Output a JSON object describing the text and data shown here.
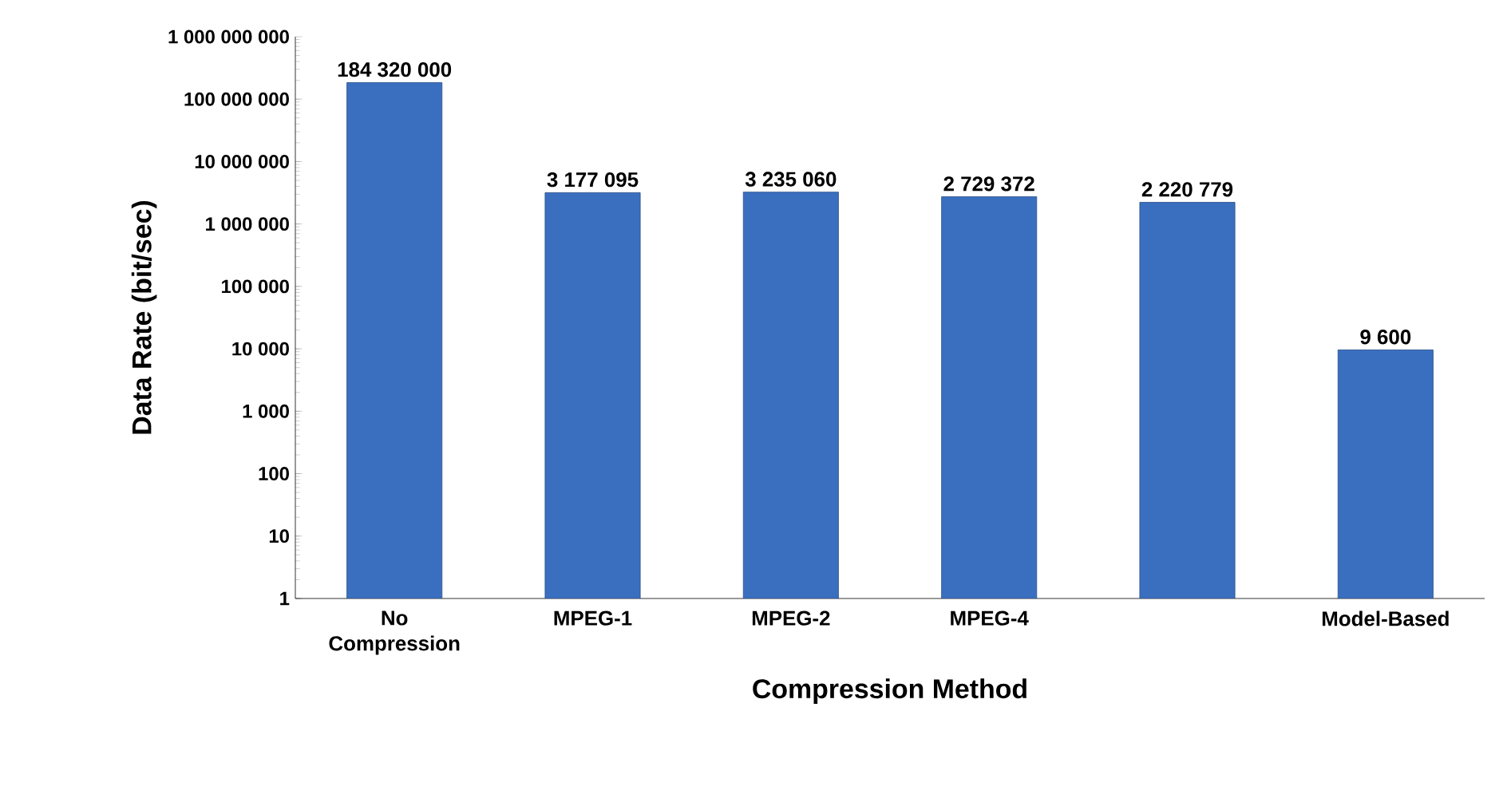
{
  "chart_data": {
    "type": "bar",
    "xlabel": "Compression Method",
    "ylabel": "Data Rate (bit/sec)",
    "categories": [
      "No Compression",
      "MPEG-1",
      "MPEG-2",
      "MPEG-4",
      null,
      "Model-Based"
    ],
    "values": [
      184320000,
      3177095,
      3235060,
      2729372,
      2220779,
      9600
    ],
    "value_labels": [
      "184 320 000",
      "3 177 095",
      "3 235 060",
      "2 729 372",
      "2 220 779",
      "9 600"
    ],
    "color": "#3a6fc0",
    "log": "y",
    "ylim": [
      1,
      1000000000
    ],
    "grid": false,
    "yticks": [
      1,
      10,
      100,
      {
        "value": 1000,
        "label": "1 000"
      },
      {
        "value": 10000,
        "label": "10 000"
      },
      {
        "value": 100000,
        "label": "100 000"
      },
      {
        "value": 1000000,
        "label": "1 000 000"
      },
      {
        "value": 10000000,
        "label": "10 000 000"
      },
      {
        "value": 100000000,
        "label": "100 000 000"
      },
      {
        "value": 1000000000,
        "label": "1 000 000 000"
      }
    ]
  }
}
